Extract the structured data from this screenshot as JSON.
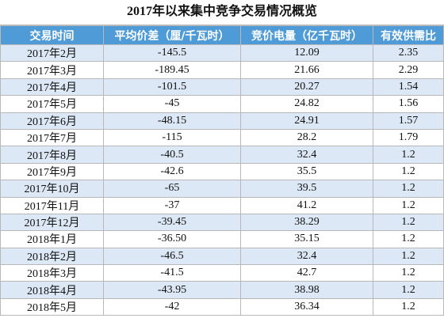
{
  "title": "2017年以来集中竞争交易情况概览",
  "table": {
    "header": [
      "交易时间",
      "平均价差（厘/千瓦时）",
      "竞价电量（亿千瓦时）",
      "有效供需比"
    ],
    "rows": [
      [
        "2017年2月",
        "-145.5",
        "12.09",
        "2.35"
      ],
      [
        "2017年3月",
        "-189.45",
        "21.66",
        "2.29"
      ],
      [
        "2017年4月",
        "-101.5",
        "20.27",
        "1.54"
      ],
      [
        "2017年5月",
        "-45",
        "24.82",
        "1.56"
      ],
      [
        "2017年6月",
        "-48.15",
        "24.91",
        "1.57"
      ],
      [
        "2017年7月",
        "-115",
        "28.2",
        "1.79"
      ],
      [
        "2017年8月",
        "-40.5",
        "32.4",
        "1.2"
      ],
      [
        "2017年9月",
        "-42.6",
        "35.5",
        "1.2"
      ],
      [
        "2017年10月",
        "-65",
        "39.5",
        "1.2"
      ],
      [
        "2017年11月",
        "-37",
        "41.2",
        "1.2"
      ],
      [
        "2017年12月",
        "-39.45",
        "38.29",
        "1.2"
      ],
      [
        "2018年1月",
        "-36.50",
        "35.15",
        "1.2"
      ],
      [
        "2018年2月",
        "-46.5",
        "32.4",
        "1.2"
      ],
      [
        "2018年3月",
        "-41.5",
        "42.7",
        "1.2"
      ],
      [
        "2018年4月",
        "-43.95",
        "38.98",
        "1.2"
      ],
      [
        "2018年5月",
        "-42",
        "36.34",
        "1.2"
      ]
    ]
  }
}
